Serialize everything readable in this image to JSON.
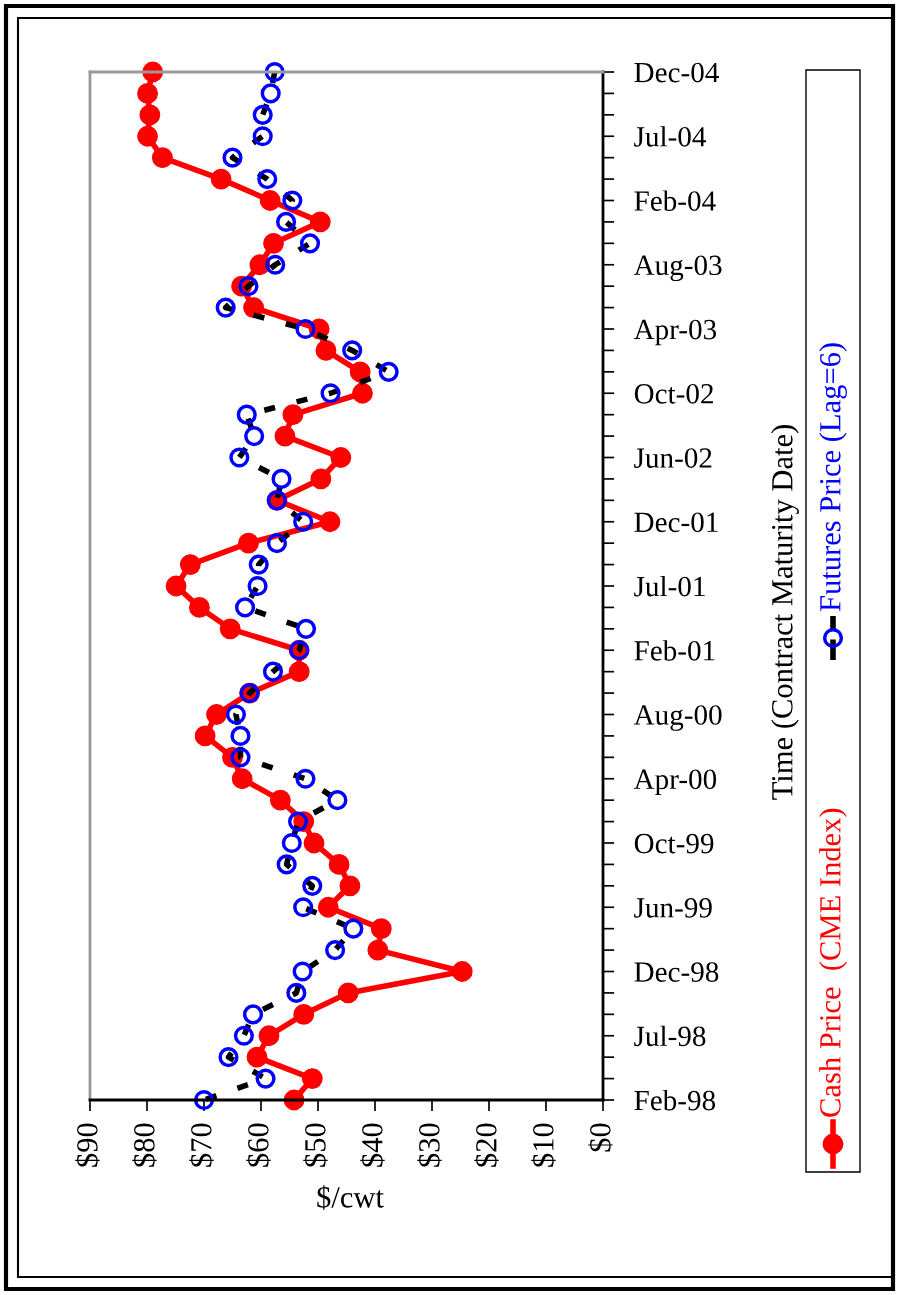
{
  "chart_data": {
    "type": "line",
    "orientation": "horizontal",
    "xlabel": "$/cwt",
    "ylabel": "Time (Contract Maturity Date)",
    "categories": [
      "Dec-04",
      null,
      null,
      "Jul-04",
      null,
      null,
      "Feb-04",
      null,
      null,
      "Aug-03",
      null,
      null,
      "Apr-03",
      null,
      null,
      "Oct-02",
      null,
      null,
      "Jun-02",
      null,
      null,
      "Dec-01",
      null,
      null,
      "Jul-01",
      null,
      null,
      "Feb-01",
      null,
      null,
      "Aug-00",
      null,
      null,
      "Apr-00",
      null,
      null,
      "Oct-99",
      null,
      null,
      "Jun-99",
      null,
      null,
      "Dec-98",
      null,
      null,
      "Jul-98",
      null,
      null,
      "Feb-98"
    ],
    "xlim": [
      90,
      0
    ],
    "xticks": [
      {
        "value": 90,
        "label": "$90"
      },
      {
        "value": 80,
        "label": "$80"
      },
      {
        "value": 70,
        "label": "$70"
      },
      {
        "value": 60,
        "label": "$60"
      },
      {
        "value": 50,
        "label": "$50"
      },
      {
        "value": 40,
        "label": "$40"
      },
      {
        "value": 30,
        "label": "$30"
      },
      {
        "value": 20,
        "label": "$20"
      },
      {
        "value": 10,
        "label": "$10"
      },
      {
        "value": 0,
        "label": "$0"
      }
    ],
    "grid": false,
    "legend": "right",
    "series": [
      {
        "name": "Cash Price  (CME Index)",
        "color": "#ff0000",
        "marker": "circle",
        "line_style": "solid",
        "values": [
          79.0,
          79.9,
          79.5,
          79.9,
          77.3,
          67.0,
          58.4,
          49.6,
          57.8,
          60.2,
          63.4,
          61.3,
          49.8,
          48.6,
          42.6,
          42.2,
          54.4,
          55.8,
          46.0,
          49.5,
          57.2,
          47.9,
          62.2,
          72.4,
          74.9,
          70.8,
          65.4,
          53.3,
          53.3,
          62.0,
          67.8,
          69.8,
          65.0,
          63.3,
          56.6,
          52.5,
          50.7,
          46.3,
          44.4,
          48.2,
          38.9,
          39.5,
          24.7,
          44.7,
          52.5,
          58.6,
          60.7,
          51.0,
          54.2
        ]
      },
      {
        "name": "Futures Price (Lag=6)",
        "color": "#0000ff",
        "marker": "circle",
        "line_style": "dashed",
        "values": [
          57.6,
          58.3,
          59.7,
          59.7,
          65.0,
          58.9,
          54.5,
          55.6,
          51.4,
          57.5,
          62.2,
          66.2,
          52.2,
          44.0,
          37.6,
          47.8,
          62.5,
          61.2,
          63.8,
          56.4,
          57.2,
          52.6,
          57.2,
          60.4,
          60.6,
          62.8,
          52.1,
          53.3,
          57.9,
          62.0,
          64.4,
          63.6,
          63.6,
          52.2,
          46.6,
          53.5,
          54.6,
          55.5,
          51.0,
          52.6,
          43.8,
          47.0,
          52.7,
          53.8,
          61.4,
          63.0,
          65.7,
          59.2,
          70.0
        ]
      }
    ]
  }
}
